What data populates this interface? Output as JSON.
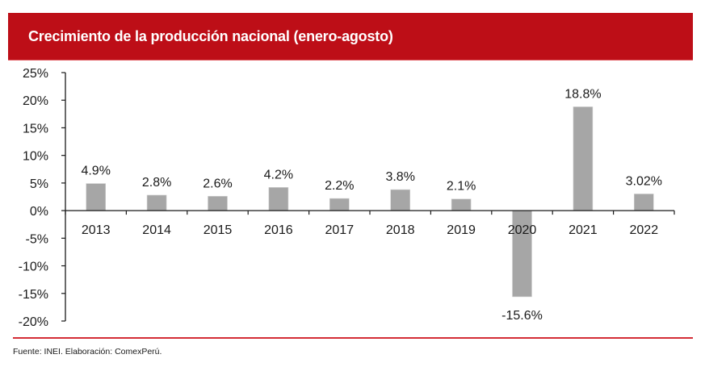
{
  "header": {
    "title": "Crecimiento de la producción nacional (enero-agosto)"
  },
  "chart_data": {
    "type": "bar",
    "title": "Crecimiento de la producción nacional (enero-agosto)",
    "xlabel": "",
    "ylabel": "",
    "categories": [
      "2013",
      "2014",
      "2015",
      "2016",
      "2017",
      "2018",
      "2019",
      "2020",
      "2021",
      "2022"
    ],
    "values": [
      4.9,
      2.8,
      2.6,
      4.2,
      2.2,
      3.8,
      2.1,
      -15.6,
      18.8,
      3.02
    ],
    "data_labels": [
      "4.9%",
      "2.8%",
      "2.6%",
      "4.2%",
      "2.2%",
      "3.8%",
      "2.1%",
      "-15.6%",
      "18.8%",
      "3.02%"
    ],
    "ylim": [
      -20,
      25
    ],
    "yticks": [
      25,
      20,
      15,
      10,
      5,
      0,
      -5,
      -10,
      -15,
      -20
    ],
    "ytick_labels": [
      "25%",
      "20%",
      "15%",
      "10%",
      "5%",
      "0%",
      "-5%",
      "-10%",
      "-15%",
      "-20%"
    ],
    "grid": false,
    "legend": "none",
    "colors": {
      "bar": "#a6a6a6",
      "axis": "#1a1a1a",
      "header": "#bd0e17",
      "rule": "#d42d36"
    }
  },
  "footer": {
    "source": "Fuente: INEI. Elaboración: ComexPerú."
  }
}
